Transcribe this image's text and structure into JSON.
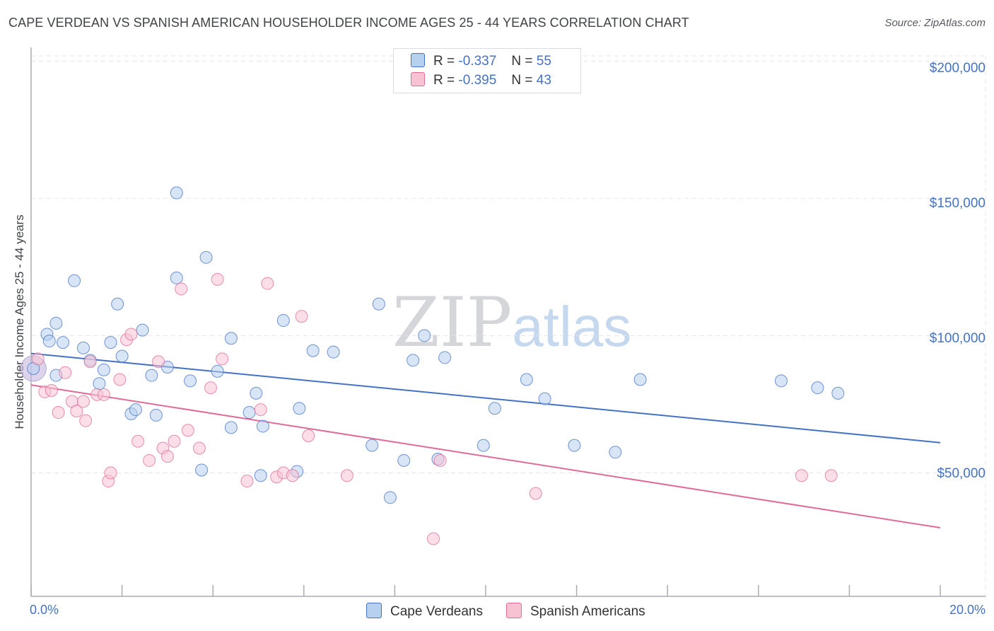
{
  "chart_data": {
    "type": "scatter",
    "title": "CAPE VERDEAN VS SPANISH AMERICAN HOUSEHOLDER INCOME AGES 25 - 44 YEARS CORRELATION CHART",
    "source": "Source: ZipAtlas.com",
    "xlabel": "",
    "ylabel": "Householder Income Ages 25 - 44 years",
    "xlim": [
      0,
      20
    ],
    "ylim": [
      5000,
      205000
    ],
    "x_tick_labels": [
      "0.0%",
      "20.0%"
    ],
    "y_ticks": [
      50000,
      100000,
      150000,
      200000
    ],
    "y_tick_labels": [
      "$50,000",
      "$100,000",
      "$150,000",
      "$200,000"
    ],
    "watermark": {
      "part1": "ZIP",
      "part2": "atlas"
    },
    "legend": [
      {
        "name": "Cape Verdeans",
        "r_label": "R =",
        "r_value": "-0.337",
        "n_label": "N =",
        "n_value": "55"
      },
      {
        "name": "Spanish Americans",
        "r_label": "R =",
        "r_value": "-0.395",
        "n_label": "N =",
        "n_value": "43"
      }
    ],
    "series": [
      {
        "name": "Cape Verdeans",
        "color": "#4472c4",
        "fill": "#b8d0f0",
        "trend": {
          "x": [
            0,
            20
          ],
          "y": [
            93500,
            61000
          ]
        },
        "points": [
          [
            0.05,
            88000
          ],
          [
            0.35,
            100500
          ],
          [
            0.4,
            98000
          ],
          [
            0.55,
            85500
          ],
          [
            0.55,
            104500
          ],
          [
            0.7,
            97500
          ],
          [
            0.95,
            120000
          ],
          [
            1.15,
            95500
          ],
          [
            1.3,
            91000
          ],
          [
            1.5,
            82500
          ],
          [
            1.6,
            87500
          ],
          [
            1.75,
            97500
          ],
          [
            1.9,
            111500
          ],
          [
            2.0,
            92500
          ],
          [
            2.2,
            71500
          ],
          [
            2.3,
            73000
          ],
          [
            2.45,
            102000
          ],
          [
            2.65,
            85500
          ],
          [
            2.75,
            71000
          ],
          [
            3.0,
            88500
          ],
          [
            3.2,
            152000
          ],
          [
            3.2,
            121000
          ],
          [
            3.5,
            83500
          ],
          [
            3.75,
            51000
          ],
          [
            3.85,
            128500
          ],
          [
            4.1,
            87000
          ],
          [
            4.4,
            66500
          ],
          [
            4.4,
            99000
          ],
          [
            4.8,
            72000
          ],
          [
            4.95,
            79000
          ],
          [
            5.1,
            67000
          ],
          [
            5.05,
            49000
          ],
          [
            5.55,
            105500
          ],
          [
            5.85,
            50500
          ],
          [
            5.9,
            73500
          ],
          [
            6.2,
            94500
          ],
          [
            6.65,
            94000
          ],
          [
            7.5,
            60000
          ],
          [
            7.65,
            111500
          ],
          [
            7.9,
            41000
          ],
          [
            8.2,
            54500
          ],
          [
            8.4,
            91000
          ],
          [
            8.65,
            100000
          ],
          [
            8.95,
            55000
          ],
          [
            9.1,
            92000
          ],
          [
            9.95,
            60000
          ],
          [
            10.2,
            73500
          ],
          [
            10.9,
            84000
          ],
          [
            11.3,
            77000
          ],
          [
            11.95,
            60000
          ],
          [
            12.85,
            57500
          ],
          [
            13.4,
            84000
          ],
          [
            16.5,
            83500
          ],
          [
            17.3,
            81000
          ],
          [
            17.75,
            79000
          ]
        ]
      },
      {
        "name": "Spanish Americans",
        "color": "#e06b97",
        "fill": "#f7c3d3",
        "trend": {
          "x": [
            0,
            20
          ],
          "y": [
            82000,
            30000
          ]
        },
        "points": [
          [
            0.15,
            91500
          ],
          [
            0.3,
            79500
          ],
          [
            0.45,
            80000
          ],
          [
            0.6,
            72000
          ],
          [
            0.75,
            86500
          ],
          [
            0.9,
            76000
          ],
          [
            1.0,
            72500
          ],
          [
            1.15,
            76000
          ],
          [
            1.2,
            69000
          ],
          [
            1.3,
            90500
          ],
          [
            1.45,
            78500
          ],
          [
            1.6,
            78500
          ],
          [
            1.7,
            47000
          ],
          [
            1.75,
            50000
          ],
          [
            1.95,
            84000
          ],
          [
            2.1,
            98500
          ],
          [
            2.2,
            100500
          ],
          [
            2.35,
            61500
          ],
          [
            2.6,
            54500
          ],
          [
            2.8,
            90500
          ],
          [
            2.9,
            59000
          ],
          [
            3.0,
            56000
          ],
          [
            3.15,
            61500
          ],
          [
            3.3,
            117000
          ],
          [
            3.45,
            65500
          ],
          [
            3.7,
            59000
          ],
          [
            3.95,
            81000
          ],
          [
            4.1,
            120500
          ],
          [
            4.2,
            91500
          ],
          [
            4.75,
            47000
          ],
          [
            5.05,
            73000
          ],
          [
            5.2,
            119000
          ],
          [
            5.4,
            48500
          ],
          [
            5.55,
            50000
          ],
          [
            5.75,
            49000
          ],
          [
            5.95,
            107000
          ],
          [
            6.1,
            63500
          ],
          [
            6.95,
            49000
          ],
          [
            8.85,
            26000
          ],
          [
            9.0,
            54500
          ],
          [
            11.1,
            42500
          ],
          [
            16.95,
            49000
          ],
          [
            17.6,
            49000
          ]
        ]
      }
    ]
  }
}
